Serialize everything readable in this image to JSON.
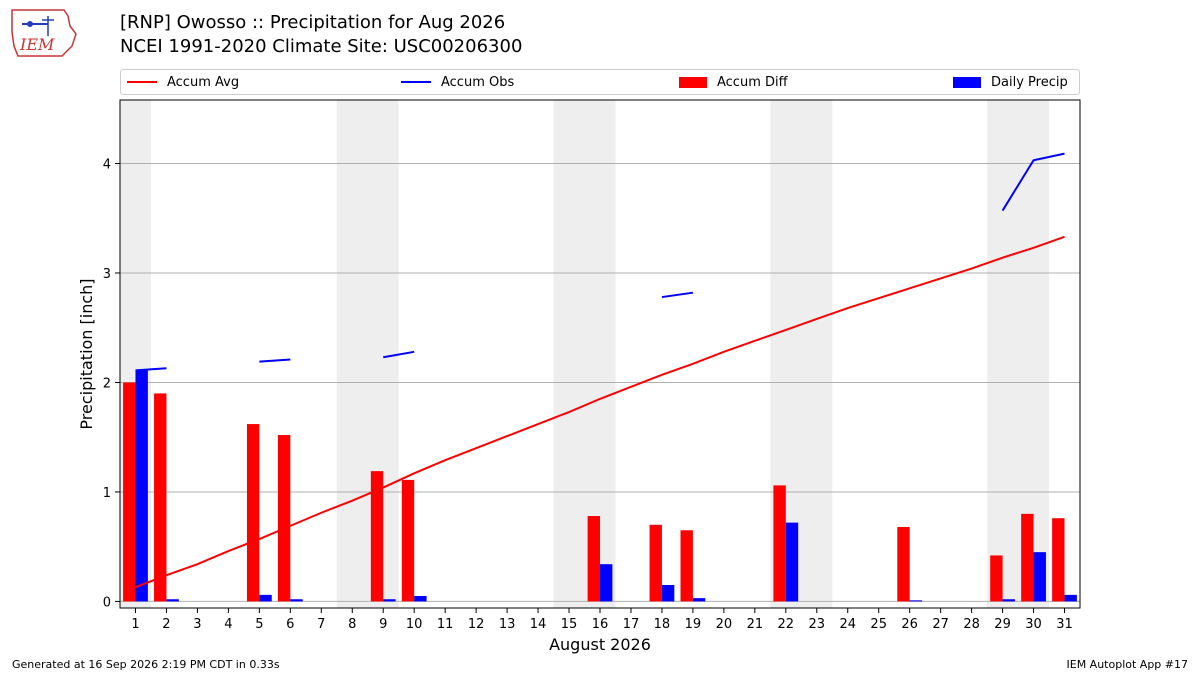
{
  "header": {
    "title_line1": "[RNP] Owosso :: Precipitation for Aug 2026",
    "title_line2": "NCEI 1991-2020 Climate Site: USC00206300",
    "logo_text": "IEM"
  },
  "legend": [
    {
      "label": "Accum Avg",
      "color": "#ff0000",
      "kind": "line"
    },
    {
      "label": "Accum Obs",
      "color": "#0000ff",
      "kind": "line"
    },
    {
      "label": "Accum Diff",
      "color": "#ff0000",
      "kind": "bar"
    },
    {
      "label": "Daily Precip",
      "color": "#0000ff",
      "kind": "bar"
    }
  ],
  "footer": {
    "left": "Generated at 16 Sep 2026 2:19 PM CDT in 0.33s",
    "right": "IEM Autoplot App #17"
  },
  "chart_data": {
    "type": "bar",
    "xlabel": "August 2026",
    "ylabel": "Precipitation [inch]",
    "ylim": [
      -0.06,
      4.58
    ],
    "yticks": [
      0,
      1,
      2,
      3,
      4
    ],
    "grid": true,
    "legend_placement": "top",
    "days": [
      1,
      2,
      3,
      4,
      5,
      6,
      7,
      8,
      9,
      10,
      11,
      12,
      13,
      14,
      15,
      16,
      17,
      18,
      19,
      20,
      21,
      22,
      23,
      24,
      25,
      26,
      27,
      28,
      29,
      30,
      31
    ],
    "weekend_shading": [
      [
        1,
        1
      ],
      [
        8,
        9
      ],
      [
        15,
        16
      ],
      [
        22,
        23
      ],
      [
        29,
        30
      ]
    ],
    "accum_avg": [
      0.13,
      0.24,
      0.34,
      0.46,
      0.57,
      0.69,
      0.81,
      0.92,
      1.04,
      1.17,
      1.29,
      1.4,
      1.51,
      1.62,
      1.73,
      1.85,
      1.96,
      2.07,
      2.17,
      2.28,
      2.38,
      2.48,
      2.58,
      2.68,
      2.77,
      2.86,
      2.95,
      3.04,
      3.14,
      3.23,
      3.33
    ],
    "accum_obs_segments": [
      [
        [
          1,
          2.11
        ],
        [
          2,
          2.13
        ]
      ],
      [
        [
          5,
          2.19
        ],
        [
          6,
          2.21
        ]
      ],
      [
        [
          9,
          2.23
        ],
        [
          10,
          2.28
        ]
      ],
      [
        [
          18,
          2.78
        ],
        [
          19,
          2.82
        ]
      ],
      [
        [
          29,
          3.57
        ],
        [
          30,
          4.03
        ],
        [
          31,
          4.09
        ]
      ]
    ],
    "accum_diff": [
      2.0,
      1.9,
      0,
      0,
      1.62,
      1.52,
      0,
      0,
      1.19,
      1.11,
      0,
      0,
      0,
      0,
      0,
      0.78,
      0,
      0.7,
      0.65,
      0,
      0,
      1.06,
      0,
      0,
      0,
      0.68,
      0,
      0,
      0.42,
      0.8,
      0.76
    ],
    "daily_precip": [
      2.11,
      0.02,
      0,
      0,
      0.06,
      0.02,
      0,
      0,
      0.02,
      0.05,
      0,
      0,
      0,
      0,
      0,
      0.34,
      0,
      0.15,
      0.03,
      0,
      0,
      0.72,
      0,
      0,
      0,
      0.01,
      0,
      0,
      0.02,
      0.45,
      0.06
    ],
    "colors": {
      "accum_avg": "#ff0000",
      "accum_obs": "#0000ff",
      "accum_diff": "#ff0000",
      "daily_precip": "#0000ff",
      "weekend": "#eeeeee",
      "grid": "#b0b0b0"
    }
  }
}
